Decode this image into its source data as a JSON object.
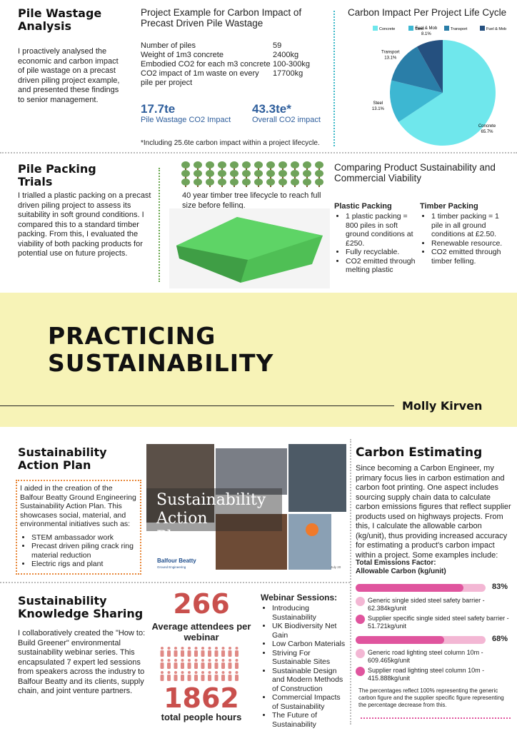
{
  "pile_wastage": {
    "title": "Pile Wastage Analysis",
    "body": "I proactively analysed the economic and carbon impact of pile wastage on a precast driven piling project example, and presented these findings to senior management.",
    "example": {
      "title": "Project Example for Carbon Impact of Precast Driven Pile Wastage",
      "rows": [
        [
          "Number of piles",
          "59"
        ],
        [
          "Weight of 1m3 concrete",
          "2400kg"
        ],
        [
          "Embodied CO2 for each m3 concrete",
          "100-300kg"
        ],
        [
          "CO2 impact of 1m waste on every pile per project",
          "17700kg"
        ]
      ],
      "stats": [
        [
          "17.7te",
          "Pile Wastage CO2 Impact"
        ],
        [
          "43.3te*",
          "Overall CO2 impact"
        ]
      ],
      "note": "*Including 25.6te carbon impact within a project lifecycle."
    }
  },
  "pie": {
    "type": "pie",
    "title": "Carbon Impact Per Project Life Cycle",
    "categories": [
      "Concrete",
      "Steel",
      "Transport",
      "Fuel & Mob"
    ],
    "values": [
      65.7,
      13.1,
      13.1,
      8.1
    ],
    "value_labels": [
      "65.7%",
      "13.1%",
      "13.1%",
      "8.1%"
    ],
    "colors": [
      "#6fe7ec",
      "#3db7d2",
      "#2a7ea8",
      "#25507f"
    ]
  },
  "pile_packing": {
    "title": "Pile Packing Trials",
    "body": "I trialled a plastic packing on a precast driven piling project to assess its suitability in soft ground conditions. I compared this to a standard timber packing. From this, I evaluated the viability of both packing products for potential use on future projects.",
    "tree_caption": "40 year timber tree lifecycle to reach full size before felling.",
    "compare_title": "Comparing Product Sustainability and Commercial Viability",
    "plastic": {
      "heading": "Plastic Packing",
      "items": [
        "1 plastic packing = 800 piles in soft ground conditions at £250.",
        "Fully recyclable.",
        "CO2 emitted through melting plastic"
      ]
    },
    "timber": {
      "heading": "Timber Packing",
      "items": [
        "1 timber packing = 1 pile in all ground conditions at £2.50.",
        "Renewable resource.",
        "CO2 emitted through timber felling."
      ]
    }
  },
  "banner": {
    "title": "PRACTICING SUSTAINABILITY",
    "author": "Molly Kirven"
  },
  "action_plan": {
    "title": "Sustainability Action Plan",
    "body": "I aided in the creation of the Balfour Beatty Ground Engineering Sustainability Action Plan. This showcases social, material, and environmental initiatives such as:",
    "items": [
      "STEM ambassador work",
      "Precast driven piling crack ring material reduction",
      "Electric rigs and plant"
    ],
    "image_title": "Sustainability Action Plan",
    "brand": "Balfour Beatty",
    "brand_sub": "Ground Engineering",
    "date": "July 20"
  },
  "carbon": {
    "title": "Carbon Estimating",
    "body": "Since becoming a Carbon Engineer, my primary focus lies in carbon estimation and carbon foot printing. One aspect includes sourcing supply chain data to calculate carbon emissions figures that reflect supplier products used on highways projects. From this, I calculate the allowable carbon (kg/unit), thus providing increased accuracy for estimating a product's carbon impact within a project. Some examples include:",
    "factor_title": [
      "Total Emissions Factor:",
      "Allowable Carbon (kg/unit)"
    ],
    "groups": [
      {
        "percent": {
          "value": 83,
          "label": "83%"
        },
        "items": [
          "Generic single sided steel safety barrier - 62.384kg/unit",
          "Supplier specific single sided steel safety barrier - 51.721kg/unit"
        ]
      },
      {
        "percent": {
          "value": 68,
          "label": "68%"
        },
        "items": [
          "Generic road lighting steel column 10m - 609.465kg/unit",
          "Supplier road lighting steel column 10m - 415.888kg/unit"
        ]
      }
    ],
    "note": "The percentages reflect 100% representing the generic carbon figure and the supplier specific figure representing the percentage decrease from this."
  },
  "knowledge": {
    "title": "Sustainability Knowledge Sharing",
    "body": "I collaboratively created the \"How to: Build Greener\" environmental sustainability webinar series. This encapsulated 7 expert led sessions from speakers across the industry to Balfour Beatty and its clients, supply chain, and joint venture partners.",
    "attendees": "266",
    "attendees_label": "Average attendees per webinar",
    "hours": "1862",
    "hours_label": "total people hours",
    "webinar_title": "Webinar Sessions:",
    "webinars": [
      "Introducing Sustainability",
      "UK Biodiversity Net Gain",
      "Low Carbon Materials",
      "Striving For Sustainable Sites",
      "Sustainable Design and Modern Methods of Construction",
      "Commercial Impacts of Sustainability",
      "The Future of Sustainability"
    ]
  }
}
